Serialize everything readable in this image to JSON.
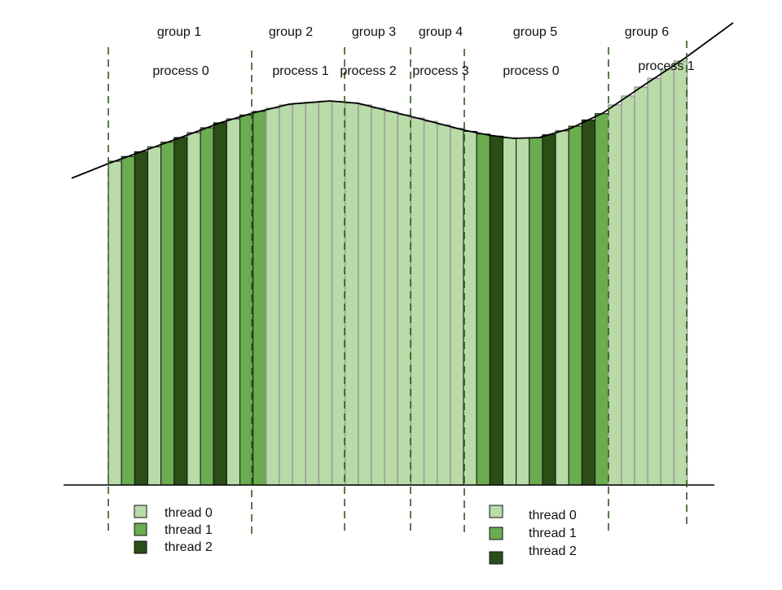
{
  "colors": {
    "thread0": "#b8dba8",
    "thread1": "#6aac4f",
    "thread2": "#2b4e17",
    "light_stroke": "#9a9a9a",
    "dark_stroke": "#111111",
    "divider": "#2f5a1f",
    "curve": "#000000",
    "axis": "#000000"
  },
  "groups": [
    {
      "label": "group 1",
      "process": "process 0"
    },
    {
      "label": "group 2",
      "process": "process 1"
    },
    {
      "label": "group 3",
      "process": "process 2"
    },
    {
      "label": "group 4",
      "process": "process 3"
    },
    {
      "label": "group 5",
      "process": "process 0"
    },
    {
      "label": "group 6",
      "process": "process 1"
    }
  ],
  "legend_left": [
    {
      "thread": 0,
      "label": "thread 0"
    },
    {
      "thread": 1,
      "label": "thread 1"
    },
    {
      "thread": 2,
      "label": "thread 2"
    }
  ],
  "legend_right": [
    {
      "thread": 0,
      "label": "thread 0"
    },
    {
      "thread": 1,
      "label": "thread 1"
    },
    {
      "thread": 2,
      "label": "thread 2"
    }
  ]
}
